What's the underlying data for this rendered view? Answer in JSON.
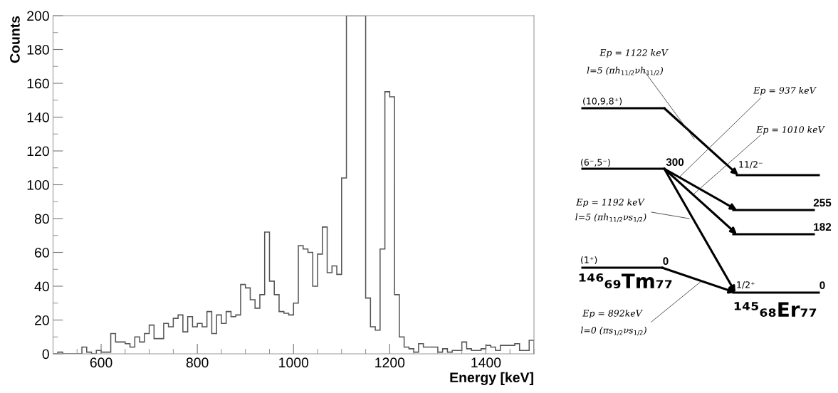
{
  "chart_data": [
    {
      "type": "histogram",
      "xlabel": "Energy [keV]",
      "ylabel": "Counts",
      "color": "#555555",
      "bins": [
        500,
        510,
        520,
        530,
        540,
        550,
        560,
        570,
        580,
        590,
        600,
        610,
        620,
        630,
        640,
        650,
        660,
        670,
        680,
        690,
        700,
        710,
        720,
        730,
        740,
        750,
        760,
        770,
        780,
        790,
        800,
        810,
        820,
        830,
        840,
        850,
        860,
        870,
        880,
        890,
        900,
        910,
        920,
        930,
        940,
        950,
        960,
        970,
        980,
        990,
        1000,
        1010,
        1020,
        1030,
        1040,
        1050,
        1060,
        1070,
        1080,
        1090,
        1100,
        1110,
        1120,
        1130,
        1140,
        1150,
        1160,
        1170,
        1180,
        1190,
        1200,
        1210,
        1220,
        1230,
        1240,
        1250,
        1260,
        1270,
        1280,
        1290,
        1300,
        1310,
        1320,
        1330,
        1340,
        1350,
        1360,
        1370,
        1380,
        1390,
        1400,
        1410,
        1420,
        1430,
        1440,
        1450,
        1460,
        1470,
        1480,
        1490,
        1500
      ],
      "values": [
        0,
        1,
        0,
        0,
        0,
        0,
        4,
        1,
        0,
        2,
        1,
        1,
        12,
        7,
        7,
        6,
        4,
        10,
        7,
        12,
        17,
        9,
        9,
        18,
        16,
        21,
        23,
        13,
        22,
        16,
        18,
        16,
        25,
        12,
        23,
        18,
        25,
        22,
        23,
        41,
        39,
        32,
        27,
        35,
        72,
        43,
        35,
        25,
        24,
        23,
        30,
        64,
        62,
        60,
        40,
        59,
        75,
        48,
        52,
        47,
        104,
        200,
        200,
        200,
        200,
        33,
        16,
        14,
        62,
        155,
        152,
        35,
        10,
        4,
        3,
        1,
        6,
        4,
        4,
        4,
        1,
        3,
        1,
        2,
        2,
        7,
        3,
        2,
        2,
        3,
        5,
        4,
        2,
        5,
        5,
        5,
        6,
        2,
        2,
        8
      ],
      "xlim": [
        500,
        1500
      ],
      "ylim": [
        0,
        200
      ],
      "xticks": [
        600,
        800,
        1000,
        1200,
        1400
      ],
      "yticks": [
        0,
        20,
        40,
        60,
        80,
        100,
        120,
        140,
        160,
        180,
        200
      ]
    },
    {
      "type": "other",
      "annotations": [
        "Ep = 1122 keV",
        "l=5 (πh$_{11/2}$νh$_{11/2}$)",
        "(10,9,8⁺)",
        "Ep = 937 keV",
        "Ep = 1010 keV",
        "(6⁻,5⁻)",
        "300",
        "11/2⁻",
        "255",
        "Ep = 1192 keV",
        "l=5 (πh$_{11/2}$νs$_{1/2}$)",
        "182",
        "(1⁺)",
        "0",
        "¹⁴⁶₆₉Tm₇₇",
        "1/2⁺",
        "0",
        "¹⁴⁵₆₈Er₇₇",
        "Ep = 892keV",
        "l=0 (πs$_{1/2}$νs$_{1/2}$)"
      ]
    }
  ]
}
